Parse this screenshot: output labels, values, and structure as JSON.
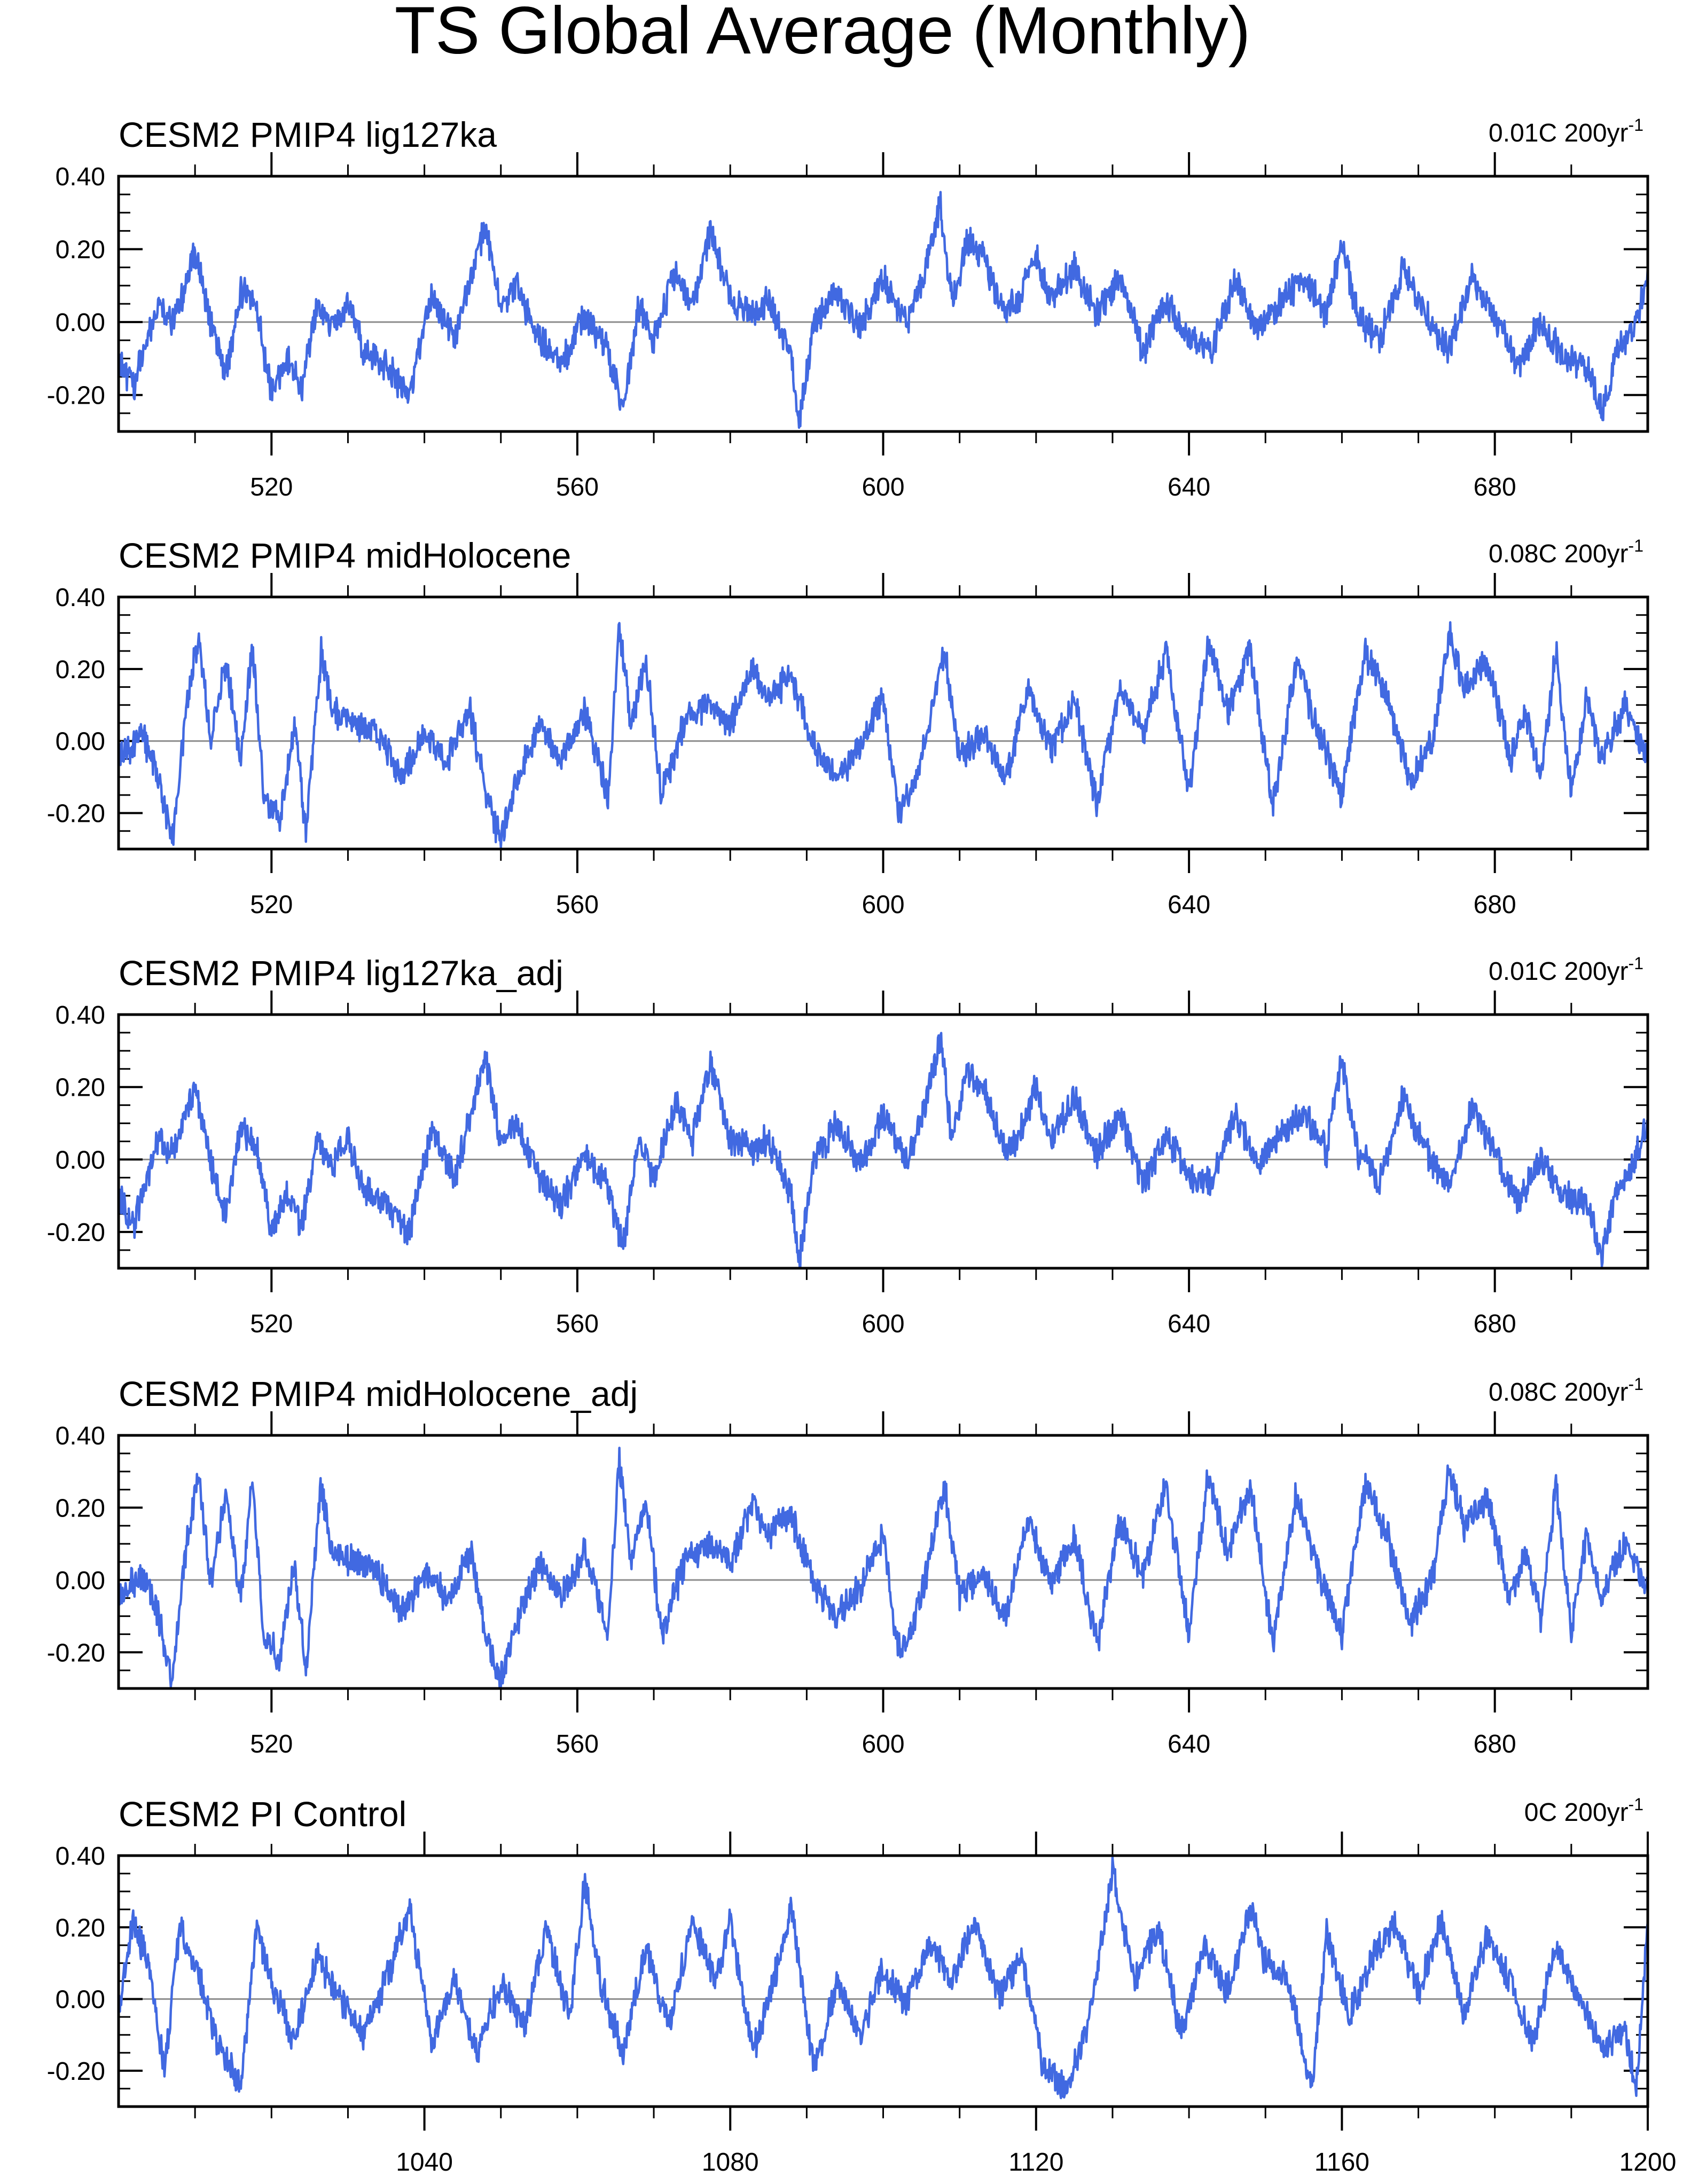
{
  "figure_title": "TS Global Average (Monthly)",
  "colors": {
    "line": "#4169E1",
    "zero_line": "#8c8c8c",
    "frame": "#000000"
  },
  "chart_data": [
    {
      "type": "line",
      "title": "CESM2 PMIP4 lig127ka",
      "trend_value": "0.01C 200yr",
      "trend_exp": "-1",
      "xlim": [
        500,
        700
      ],
      "ylim": [
        -0.3,
        0.4
      ],
      "xticks": [
        520,
        560,
        600,
        640,
        680
      ],
      "xtick_labels": [
        "520",
        "560",
        "600",
        "640",
        "680"
      ],
      "yticks": [
        -0.2,
        0.0,
        0.2,
        0.4
      ],
      "ytick_labels": [
        "-0.20",
        "0.00",
        "0.20",
        "0.40"
      ],
      "xlabel": "",
      "ylabel": "",
      "series": [
        {
          "name": "TS",
          "x": [
            500,
            502,
            505,
            507,
            508.5,
            510,
            512,
            514,
            516,
            518,
            520,
            522,
            524,
            526,
            528,
            530,
            532,
            535,
            538,
            541,
            544,
            546,
            548,
            550,
            552,
            555,
            558,
            561,
            564,
            566,
            568,
            570,
            573,
            575,
            577.5,
            580,
            583,
            585,
            588,
            589,
            591,
            594,
            597,
            600,
            603,
            605,
            607.5,
            609,
            611,
            613,
            616,
            618,
            620,
            622,
            625,
            628,
            631,
            634,
            637,
            640,
            643,
            646,
            649,
            652,
            655,
            658,
            660,
            662,
            665,
            668,
            671,
            674,
            677,
            680,
            683,
            686,
            689,
            692,
            694,
            696,
            698,
            700
          ],
          "values": [
            -0.1,
            -0.18,
            0.05,
            0.0,
            0.08,
            0.2,
            0.0,
            -0.15,
            0.08,
            0.05,
            -0.2,
            -0.1,
            -0.18,
            0.05,
            -0.02,
            0.06,
            -0.08,
            -0.12,
            -0.2,
            0.08,
            -0.05,
            0.12,
            0.26,
            0.05,
            0.1,
            -0.05,
            -0.12,
            0.02,
            -0.08,
            -0.25,
            0.05,
            -0.05,
            0.15,
            0.05,
            0.25,
            0.06,
            0.02,
            0.06,
            -0.1,
            -0.28,
            0.0,
            0.08,
            -0.02,
            0.12,
            0.0,
            0.1,
            0.33,
            0.05,
            0.22,
            0.18,
            0.02,
            0.08,
            0.18,
            0.06,
            0.15,
            0.02,
            0.12,
            -0.08,
            0.06,
            -0.05,
            -0.08,
            0.12,
            -0.02,
            0.06,
            0.12,
            0.02,
            0.22,
            0.02,
            -0.05,
            0.15,
            0.02,
            -0.08,
            0.12,
            0.02,
            -0.12,
            0.0,
            -0.1,
            -0.12,
            -0.25,
            -0.08,
            -0.02,
            0.12
          ]
        }
      ]
    },
    {
      "type": "line",
      "title": "CESM2 PMIP4 midHolocene",
      "trend_value": "0.08C 200yr",
      "trend_exp": "-1",
      "xlim": [
        500,
        700
      ],
      "ylim": [
        -0.3,
        0.4
      ],
      "xticks": [
        520,
        560,
        600,
        640,
        680
      ],
      "xtick_labels": [
        "520",
        "560",
        "600",
        "640",
        "680"
      ],
      "yticks": [
        -0.2,
        0.0,
        0.2,
        0.4
      ],
      "ytick_labels": [
        "-0.20",
        "0.00",
        "0.20",
        "0.40"
      ],
      "xlabel": "",
      "ylabel": "",
      "series": [
        {
          "name": "TS",
          "x": [
            500,
            503,
            505,
            507,
            509,
            510.5,
            512,
            514,
            516,
            517.5,
            519,
            521,
            523,
            524.5,
            526.5,
            528,
            531,
            534,
            537,
            540,
            543,
            546,
            548,
            550,
            552,
            555,
            558,
            561,
            564,
            565.5,
            567,
            569,
            571,
            574,
            577,
            580,
            583,
            585,
            588,
            591,
            594,
            597,
            600,
            602,
            604,
            606,
            608,
            610,
            613,
            616,
            619,
            622,
            625,
            628,
            631,
            634,
            637,
            640,
            642.5,
            645,
            648,
            651,
            654,
            657,
            660,
            663,
            666,
            669,
            672,
            674,
            676,
            679,
            682,
            684,
            686,
            688,
            690,
            692,
            694,
            697,
            700
          ],
          "values": [
            -0.05,
            0.02,
            -0.08,
            -0.28,
            0.12,
            0.29,
            0.0,
            0.22,
            -0.05,
            0.27,
            -0.15,
            -0.22,
            0.05,
            -0.25,
            0.25,
            0.08,
            0.05,
            0.02,
            -0.1,
            0.02,
            -0.05,
            0.08,
            -0.15,
            -0.28,
            -0.12,
            0.05,
            -0.05,
            0.08,
            -0.15,
            0.32,
            0.05,
            0.22,
            -0.15,
            0.05,
            0.1,
            0.05,
            0.2,
            0.12,
            0.18,
            -0.02,
            -0.1,
            -0.02,
            0.12,
            -0.2,
            -0.12,
            0.05,
            0.25,
            -0.05,
            0.02,
            -0.1,
            0.15,
            -0.02,
            0.12,
            -0.18,
            0.15,
            0.02,
            0.25,
            -0.15,
            0.28,
            0.08,
            0.25,
            -0.18,
            0.22,
            0.02,
            -0.15,
            0.25,
            0.12,
            -0.12,
            0.02,
            0.3,
            0.15,
            0.22,
            -0.05,
            0.08,
            -0.1,
            0.25,
            -0.15,
            0.12,
            -0.05,
            0.1,
            -0.05
          ]
        }
      ]
    },
    {
      "type": "line",
      "title": "CESM2 PMIP4 lig127ka_adj",
      "trend_value": "0.01C 200yr",
      "trend_exp": "-1",
      "xlim": [
        500,
        700
      ],
      "ylim": [
        -0.3,
        0.4
      ],
      "xticks": [
        520,
        560,
        600,
        640,
        680
      ],
      "xtick_labels": [
        "520",
        "560",
        "600",
        "640",
        "680"
      ],
      "yticks": [
        -0.2,
        0.0,
        0.2,
        0.4
      ],
      "ytick_labels": [
        "-0.20",
        "0.00",
        "0.20",
        "0.40"
      ],
      "xlabel": "",
      "ylabel": "",
      "series": [
        {
          "name": "TS",
          "x": [
            500,
            502,
            505,
            507,
            508.5,
            510,
            512,
            514,
            516,
            518,
            520,
            522,
            524,
            526,
            528,
            530,
            532,
            535,
            538,
            541,
            544,
            546,
            548,
            550,
            552,
            555,
            558,
            561,
            564,
            566,
            568,
            570,
            573,
            575,
            577.5,
            580,
            583,
            585,
            588,
            589,
            591,
            594,
            597,
            600,
            603,
            605,
            607.5,
            609,
            611,
            613,
            616,
            618,
            620,
            622,
            625,
            628,
            631,
            634,
            637,
            640,
            643,
            646,
            649,
            652,
            655,
            658,
            660,
            662,
            665,
            668,
            671,
            674,
            677,
            680,
            683,
            686,
            689,
            692,
            694,
            696,
            698,
            700
          ],
          "values": [
            -0.1,
            -0.18,
            0.05,
            0.02,
            0.1,
            0.2,
            0.0,
            -0.15,
            0.08,
            0.05,
            -0.2,
            -0.1,
            -0.18,
            0.05,
            -0.02,
            0.06,
            -0.08,
            -0.12,
            -0.2,
            0.08,
            -0.05,
            0.12,
            0.27,
            0.05,
            0.1,
            -0.05,
            -0.12,
            0.02,
            -0.08,
            -0.24,
            0.05,
            -0.05,
            0.15,
            0.05,
            0.27,
            0.06,
            0.02,
            0.06,
            -0.1,
            -0.28,
            0.0,
            0.1,
            -0.02,
            0.12,
            0.0,
            0.1,
            0.34,
            0.05,
            0.24,
            0.2,
            0.02,
            0.08,
            0.2,
            0.06,
            0.17,
            0.02,
            0.13,
            -0.08,
            0.07,
            -0.05,
            -0.06,
            0.13,
            -0.02,
            0.07,
            0.13,
            0.02,
            0.28,
            0.02,
            -0.05,
            0.17,
            0.03,
            -0.08,
            0.14,
            0.02,
            -0.12,
            0.0,
            -0.1,
            -0.12,
            -0.28,
            -0.08,
            -0.02,
            0.1
          ]
        }
      ]
    },
    {
      "type": "line",
      "title": "CESM2 PMIP4 midHolocene_adj",
      "trend_value": "0.08C 200yr",
      "trend_exp": "-1",
      "xlim": [
        500,
        700
      ],
      "ylim": [
        -0.3,
        0.4
      ],
      "xticks": [
        520,
        560,
        600,
        640,
        680
      ],
      "xtick_labels": [
        "520",
        "560",
        "600",
        "640",
        "680"
      ],
      "yticks": [
        -0.2,
        0.0,
        0.2,
        0.4
      ],
      "ytick_labels": [
        "-0.20",
        "0.00",
        "0.20",
        "0.40"
      ],
      "xlabel": "",
      "ylabel": "",
      "series": [
        {
          "name": "TS",
          "x": [
            500,
            503,
            505,
            507,
            509,
            510.5,
            512,
            514,
            516,
            517.5,
            519,
            521,
            523,
            524.5,
            526.5,
            528,
            531,
            534,
            537,
            540,
            543,
            546,
            548,
            550,
            552,
            555,
            558,
            561,
            564,
            565.5,
            567,
            569,
            571,
            574,
            577,
            580,
            583,
            585,
            588,
            591,
            594,
            597,
            600,
            602,
            604,
            606,
            608,
            610,
            613,
            616,
            619,
            622,
            625,
            628,
            631,
            634,
            637,
            640,
            642.5,
            645,
            648,
            651,
            654,
            657,
            660,
            663,
            666,
            669,
            672,
            674,
            676,
            679,
            682,
            684,
            686,
            688,
            690,
            692,
            694,
            697,
            700
          ],
          "values": [
            -0.05,
            0.02,
            -0.08,
            -0.28,
            0.12,
            0.29,
            0.0,
            0.22,
            -0.05,
            0.28,
            -0.15,
            -0.22,
            0.05,
            -0.25,
            0.26,
            0.08,
            0.05,
            0.02,
            -0.1,
            0.02,
            -0.05,
            0.08,
            -0.15,
            -0.28,
            -0.12,
            0.05,
            -0.05,
            0.08,
            -0.15,
            0.33,
            0.05,
            0.22,
            -0.15,
            0.05,
            0.1,
            0.05,
            0.22,
            0.12,
            0.18,
            -0.02,
            -0.1,
            -0.02,
            0.12,
            -0.2,
            -0.12,
            0.05,
            0.26,
            -0.05,
            0.02,
            -0.1,
            0.17,
            -0.02,
            0.12,
            -0.18,
            0.16,
            0.02,
            0.26,
            -0.15,
            0.29,
            0.08,
            0.26,
            -0.18,
            0.23,
            0.02,
            -0.15,
            0.26,
            0.12,
            -0.12,
            0.02,
            0.31,
            0.15,
            0.22,
            -0.05,
            0.08,
            -0.1,
            0.26,
            -0.15,
            0.12,
            -0.05,
            0.1,
            -0.03
          ]
        }
      ]
    },
    {
      "type": "line",
      "title": "CESM2 PI Control",
      "trend_value": "0C 200yr",
      "trend_exp": "-1",
      "xlim": [
        1000,
        1200
      ],
      "ylim": [
        -0.3,
        0.4
      ],
      "xticks": [
        1040,
        1080,
        1120,
        1160,
        1200
      ],
      "xtick_labels": [
        "1040",
        "1080",
        "1120",
        "1160",
        "1200"
      ],
      "yticks": [
        -0.2,
        0.0,
        0.2,
        0.4
      ],
      "ytick_labels": [
        "-0.20",
        "0.00",
        "0.20",
        "0.40"
      ],
      "xlabel": "",
      "ylabel": "",
      "series": [
        {
          "name": "TS",
          "x": [
            1000,
            1002,
            1004,
            1006,
            1008,
            1010,
            1013,
            1016,
            1018,
            1020,
            1023,
            1026,
            1029,
            1032,
            1035,
            1038,
            1041,
            1044,
            1047,
            1050,
            1053,
            1056,
            1059,
            1061,
            1063,
            1066,
            1069,
            1072,
            1075,
            1078,
            1080,
            1083,
            1085,
            1088,
            1091,
            1094,
            1097,
            1100,
            1103,
            1106,
            1109,
            1112,
            1115,
            1118,
            1121,
            1124,
            1127,
            1130,
            1133,
            1136,
            1139,
            1142,
            1145,
            1148,
            1150,
            1153,
            1156,
            1158,
            1161,
            1164,
            1167,
            1170,
            1173,
            1176,
            1179,
            1182,
            1185,
            1188,
            1191,
            1194,
            1197,
            1198.5,
            1200
          ],
          "values": [
            -0.02,
            0.22,
            0.08,
            -0.2,
            0.2,
            0.1,
            -0.12,
            -0.25,
            0.2,
            0.05,
            -0.12,
            0.12,
            0.0,
            -0.1,
            0.05,
            0.25,
            -0.12,
            0.05,
            -0.15,
            0.05,
            -0.08,
            0.2,
            -0.05,
            0.33,
            0.05,
            -0.15,
            0.15,
            -0.08,
            0.22,
            0.05,
            0.22,
            -0.15,
            0.0,
            0.25,
            -0.2,
            0.05,
            -0.1,
            0.08,
            -0.02,
            0.15,
            0.05,
            0.22,
            0.0,
            0.12,
            -0.2,
            -0.25,
            -0.05,
            0.36,
            0.05,
            0.2,
            -0.1,
            0.15,
            0.02,
            0.25,
            0.1,
            0.05,
            -0.26,
            0.18,
            -0.05,
            0.12,
            0.2,
            0.02,
            0.22,
            -0.05,
            0.18,
            0.05,
            -0.12,
            0.15,
            0.0,
            -0.15,
            -0.08,
            -0.24,
            0.2
          ]
        }
      ]
    }
  ]
}
